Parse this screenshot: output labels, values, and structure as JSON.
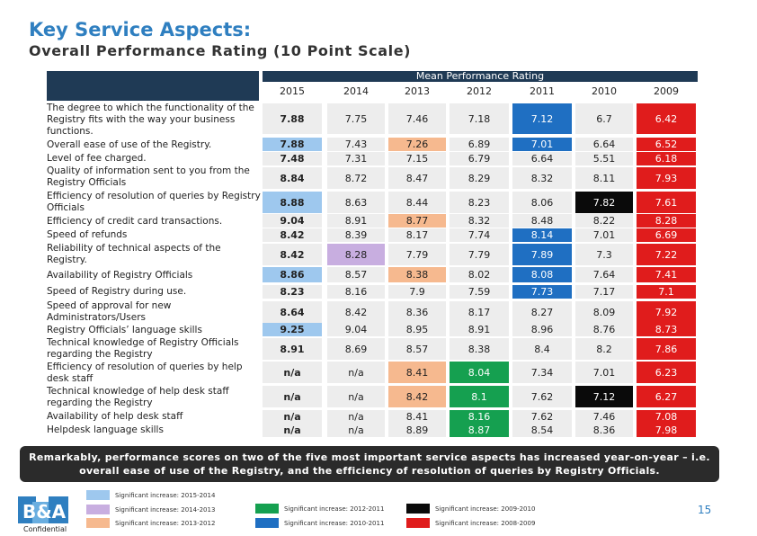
{
  "title": "Key Service Aspects:",
  "subtitle": "Overall Performance Rating (10 Point Scale)",
  "table": {
    "group_header": "Mean Performance Rating",
    "years": [
      "2015",
      "2014",
      "2013",
      "2012",
      "2011",
      "2010",
      "2009"
    ],
    "rows": [
      {
        "label": "The degree to which the functionality of the Registry fits with the way your business functions.",
        "values": [
          "7.88",
          "7.75",
          "7.46",
          "7.18",
          "7.12",
          "6.7",
          "6.42"
        ],
        "hl": [
          "",
          "",
          "",
          "",
          "blue",
          "",
          "red"
        ]
      },
      {
        "label": "Overall ease of use of the Registry.",
        "values": [
          "7.88",
          "7.43",
          "7.26",
          "6.89",
          "7.01",
          "6.64",
          "6.52"
        ],
        "hl": [
          "lightblue",
          "",
          "peach",
          "",
          "blue",
          "",
          "red"
        ]
      },
      {
        "label": "Level of  fee charged.",
        "values": [
          "7.48",
          "7.31",
          "7.15",
          "6.79",
          "6.64",
          "5.51",
          "6.18"
        ],
        "hl": [
          "",
          "",
          "",
          "",
          "",
          "",
          "red"
        ]
      },
      {
        "label": "Quality of information sent to you from the Registry Officials",
        "values": [
          "8.84",
          "8.72",
          "8.47",
          "8.29",
          "8.32",
          "8.11",
          "7.93"
        ],
        "hl": [
          "",
          "",
          "",
          "",
          "",
          "",
          "red"
        ]
      },
      {
        "label": "Efficiency of resolution of queries by Registry Officials",
        "values": [
          "8.88",
          "8.63",
          "8.44",
          "8.23",
          "8.06",
          "7.82",
          "7.61"
        ],
        "hl": [
          "lightblue",
          "",
          "",
          "",
          "",
          "black",
          "red"
        ]
      },
      {
        "label": "Efficiency of credit card transactions.",
        "values": [
          "9.04",
          "8.91",
          "8.77",
          "8.32",
          "8.48",
          "8.22",
          "8.28"
        ],
        "hl": [
          "",
          "",
          "peach",
          "",
          "",
          "",
          "red"
        ]
      },
      {
        "label": "Speed of refunds",
        "values": [
          "8.42",
          "8.39",
          "8.17",
          "7.74",
          "8.14",
          "7.01",
          "6.69"
        ],
        "hl": [
          "",
          "",
          "",
          "",
          "blue",
          "",
          "red"
        ]
      },
      {
        "label": "Reliability of technical aspects of the Registry.",
        "values": [
          "8.42",
          "8.28",
          "7.79",
          "7.79",
          "7.89",
          "7.3",
          "7.22"
        ],
        "hl": [
          "",
          "lilac",
          "",
          "",
          "blue",
          "",
          "red"
        ]
      },
      {
        "label": "Availability of Registry Officials",
        "values": [
          "8.86",
          "8.57",
          "8.38",
          "8.02",
          "8.08",
          "7.64",
          "7.41"
        ],
        "hl": [
          "lightblue",
          "",
          "peach",
          "",
          "blue",
          "",
          "red"
        ]
      },
      {
        "label": "Speed of Registry during use.",
        "values": [
          "8.23",
          "8.16",
          "7.9",
          "7.59",
          "7.73",
          "7.17",
          "7.1"
        ],
        "hl": [
          "",
          "",
          "",
          "",
          "blue",
          "",
          "red"
        ]
      },
      {
        "label": "Speed of approval for new Administrators/Users",
        "values": [
          "8.64",
          "8.42",
          "8.36",
          "8.17",
          "8.27",
          "8.09",
          "7.92"
        ],
        "hl": [
          "",
          "",
          "",
          "",
          "",
          "",
          "red"
        ]
      },
      {
        "label": "Registry Officials’ language skills",
        "values": [
          "9.25",
          "9.04",
          "8.95",
          "8.91",
          "8.96",
          "8.76",
          "8.73"
        ],
        "hl": [
          "lightblue",
          "",
          "",
          "",
          "",
          "",
          "red"
        ]
      },
      {
        "label": "Technical knowledge of Registry Officials regarding the Registry",
        "values": [
          "8.91",
          "8.69",
          "8.57",
          "8.38",
          "8.4",
          "8.2",
          "7.86"
        ],
        "hl": [
          "",
          "",
          "",
          "",
          "",
          "",
          "red"
        ]
      },
      {
        "label": "Efficiency of resolution of queries by help desk staff",
        "values": [
          "n/a",
          "n/a",
          "8.41",
          "8.04",
          "7.34",
          "7.01",
          "6.23"
        ],
        "hl": [
          "",
          "",
          "peach",
          "green",
          "",
          "",
          "red"
        ]
      },
      {
        "label": "Technical knowledge of  help desk staff regarding the Registry",
        "values": [
          "n/a",
          "n/a",
          "8.42",
          "8.1",
          "7.62",
          "7.12",
          "6.27"
        ],
        "hl": [
          "",
          "",
          "peach",
          "green",
          "",
          "black",
          "red"
        ]
      },
      {
        "label": "Availability of help desk staff",
        "values": [
          "n/a",
          "n/a",
          "8.41",
          "8.16",
          "7.62",
          "7.46",
          "7.08"
        ],
        "hl": [
          "",
          "",
          "",
          "green",
          "",
          "",
          "red"
        ]
      },
      {
        "label": "Helpdesk language skills",
        "values": [
          "n/a",
          "n/a",
          "8.89",
          "8.87",
          "8.54",
          "8.36",
          "7.98"
        ],
        "hl": [
          "",
          "",
          "",
          "green",
          "",
          "",
          "red"
        ]
      }
    ]
  },
  "banner": "Remarkably, performance scores on two of the five most important service aspects has increased year-on-year – i.e. overall ease of use of the Registry, and the efficiency of resolution of queries by Registry Officials.",
  "legend": [
    {
      "label": "Significant increase: 2015-2014",
      "color": "#9ec8ee"
    },
    {
      "label": "Significant increase: 2014-2013",
      "color": "#c8aee0"
    },
    {
      "label": "Significant increase: 2013-2012",
      "color": "#f6b98f"
    },
    {
      "label": "Significant increase: 2012-2011",
      "color": "#15a050"
    },
    {
      "label": "Significant increase: 2010-2011",
      "color": "#1f6fc2"
    },
    {
      "label": "Significant increase: 2009-2010",
      "color": "#0a0a0a"
    },
    {
      "label": "Significant increase: 2008-2009",
      "color": "#e01c1c"
    }
  ],
  "confidential": "Confidential",
  "page_number": "15",
  "logo_text": "B&A"
}
